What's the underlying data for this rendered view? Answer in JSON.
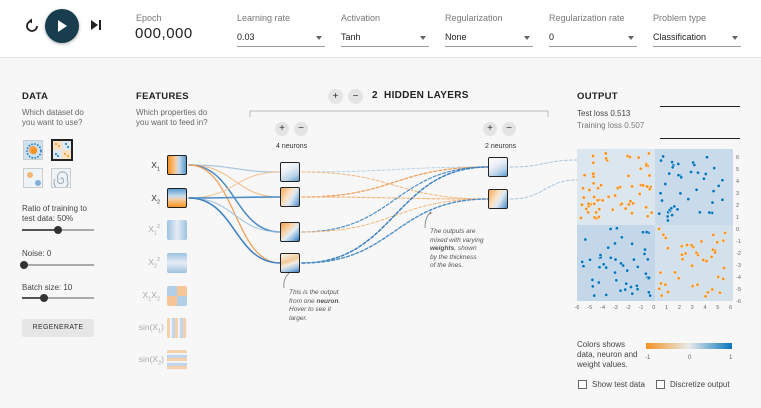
{
  "controls": {
    "epoch_label": "Epoch",
    "epoch_value": "000,000"
  },
  "selects": [
    {
      "label": "Learning rate",
      "value": "0.03"
    },
    {
      "label": "Activation",
      "value": "Tanh"
    },
    {
      "label": "Regularization",
      "value": "None"
    },
    {
      "label": "Regularization rate",
      "value": "0"
    },
    {
      "label": "Problem type",
      "value": "Classification"
    }
  ],
  "data_panel": {
    "title": "DATA",
    "subtitle_1": "Which dataset do",
    "subtitle_2": "you want to use?",
    "ratio_label_1": "Ratio of training to",
    "ratio_label_2": "test data:  50%",
    "ratio_value": 50,
    "noise_label": "Noise:  0",
    "noise_value": 0,
    "batch_label": "Batch size:  10",
    "batch_value": 10,
    "regenerate_label": "REGENERATE"
  },
  "features_panel": {
    "title": "FEATURES",
    "subtitle_1": "Which properties do",
    "subtitle_2": "you want to feed in?"
  },
  "features": [
    {
      "base": "X",
      "sub": "1",
      "sup": "",
      "active": true
    },
    {
      "base": "X",
      "sub": "2",
      "sup": "",
      "active": true
    },
    {
      "base": "X",
      "sub": "1",
      "sup": "2",
      "active": false
    },
    {
      "base": "X",
      "sub": "2",
      "sup": "2",
      "active": false
    },
    {
      "base": "X",
      "sub": "1",
      "sup": "",
      "extra": "X",
      "extra_sub": "2",
      "active": false
    },
    {
      "base": "sin(X",
      "sub": "1",
      "sup": "",
      "close": ")",
      "active": false
    },
    {
      "base": "sin(X",
      "sub": "2",
      "sup": "",
      "close": ")",
      "active": false
    }
  ],
  "layers": {
    "count": "2",
    "label": "HIDDEN LAYERS",
    "layer1_label": "4 neurons",
    "layer2_label": "2 neurons",
    "add_symbol": "+",
    "remove_symbol": "−"
  },
  "notes": {
    "neuron_note_1": "This is the output",
    "neuron_note_2_pre": "from one ",
    "neuron_note_2_bold": "neuron",
    "neuron_note_2_post": ".",
    "neuron_note_3": "Hover to see it",
    "neuron_note_4": "larger.",
    "weights_note_1": "The outputs are",
    "weights_note_2": "mixed with varying",
    "weights_note_3_bold": "weights",
    "weights_note_3_post": ", shown",
    "weights_note_4": "by the thickness",
    "weights_note_5": "of the lines."
  },
  "output": {
    "title": "OUTPUT",
    "test_loss": "Test loss 0.513",
    "training_loss": "Training loss 0.507",
    "y_ticks": [
      "6",
      "5",
      "4",
      "3",
      "2",
      "1",
      "0",
      "-1",
      "-2",
      "-3",
      "-4",
      "-5",
      "-6"
    ],
    "x_ticks": [
      "-6",
      "-5",
      "-4",
      "-3",
      "-2",
      "-1",
      "0",
      "1",
      "2",
      "3",
      "4",
      "5",
      "6"
    ],
    "legend_text_1": "Colors shows",
    "legend_text_2": "data, neuron and",
    "legend_text_3": "weight values.",
    "legend_min": "-1",
    "legend_mid": "0",
    "legend_max": "1",
    "show_test_label": "Show test data",
    "discretize_label": "Discretize output",
    "colors": {
      "orange": "#f59322",
      "blue": "#0877bd"
    }
  }
}
